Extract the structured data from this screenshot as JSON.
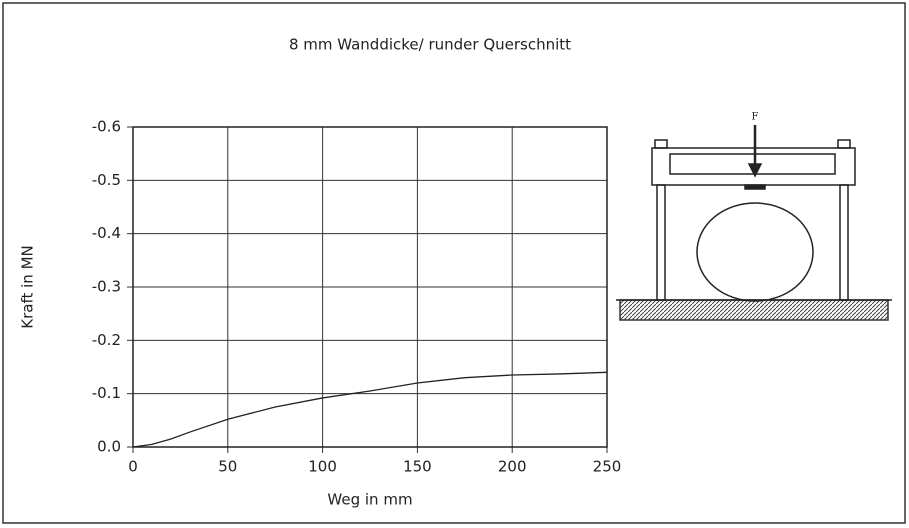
{
  "chart_data": {
    "type": "line",
    "title": "8 mm Wanddicke/ runder Querschnitt",
    "x_label": "Weg in mm",
    "y_label": "Kraft in MN",
    "annotations": [
      "F"
    ],
    "x": [
      0,
      10,
      20,
      30,
      50,
      75,
      100,
      125,
      150,
      175,
      200,
      225,
      250
    ],
    "series": [
      {
        "color": "#222222",
        "values": [
          0,
          -0.005,
          -0.015,
          -0.028,
          -0.052,
          -0.075,
          -0.092,
          -0.105,
          -0.12,
          -0.13,
          -0.135,
          -0.137,
          -0.14
        ]
      }
    ],
    "xlim": [
      0,
      250
    ],
    "xticks": [
      0,
      50,
      100,
      150,
      200,
      250
    ],
    "ylim": [
      0,
      -0.6
    ],
    "yticks": [
      {
        "value": 0,
        "label": "0.0"
      },
      -0.1,
      -0.2,
      -0.3,
      -0.4,
      -0.5,
      -0.6
    ],
    "grid": true
  }
}
